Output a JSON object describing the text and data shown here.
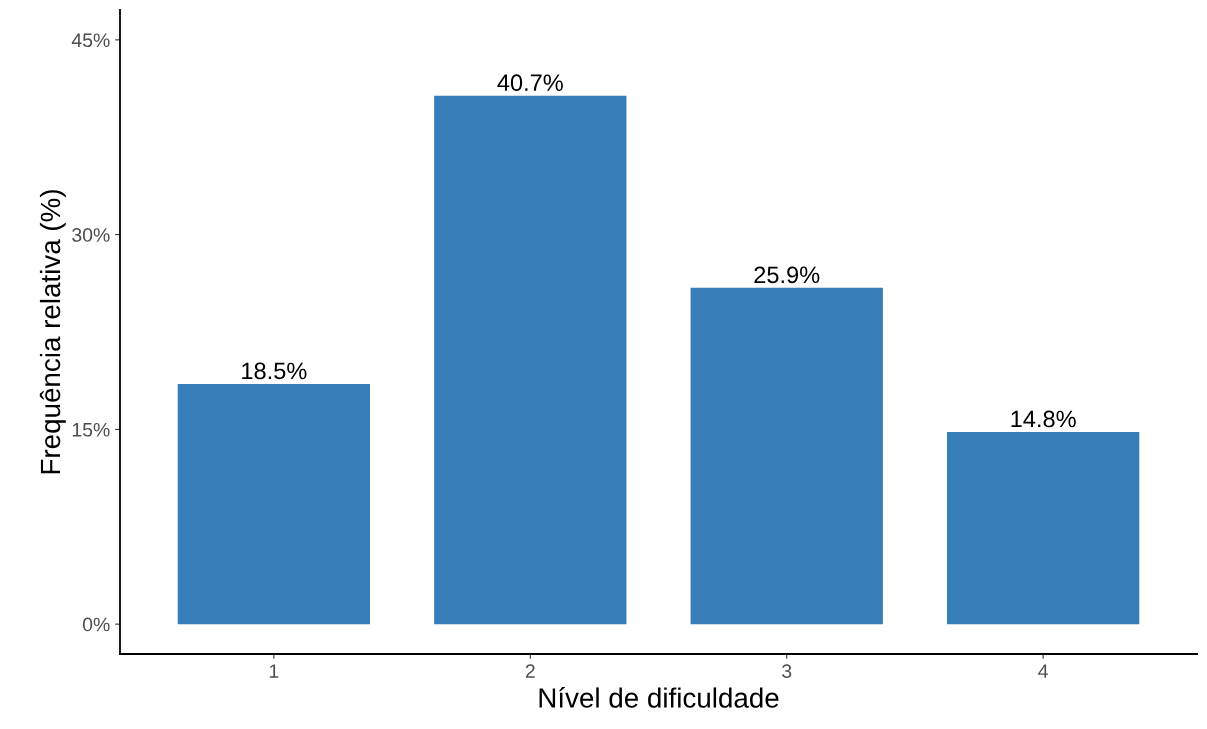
{
  "chart_data": {
    "type": "bar",
    "xlabel": "Nível de dificuldade",
    "ylabel": "Frequência relativa (%)",
    "categories": [
      "1",
      "2",
      "3",
      "4"
    ],
    "values": [
      18.5,
      40.7,
      25.9,
      14.8
    ],
    "value_labels": [
      "18.5%",
      "40.7%",
      "25.9%",
      "14.8%"
    ],
    "color": "#377eb8",
    "ylim": [
      -2.3,
      47.3
    ],
    "yticks": [
      {
        "value": 0,
        "label": "0%"
      },
      {
        "value": 15,
        "label": "15%"
      },
      {
        "value": 30,
        "label": "30%"
      },
      {
        "value": 45,
        "label": "45%"
      }
    ],
    "grid": false
  }
}
